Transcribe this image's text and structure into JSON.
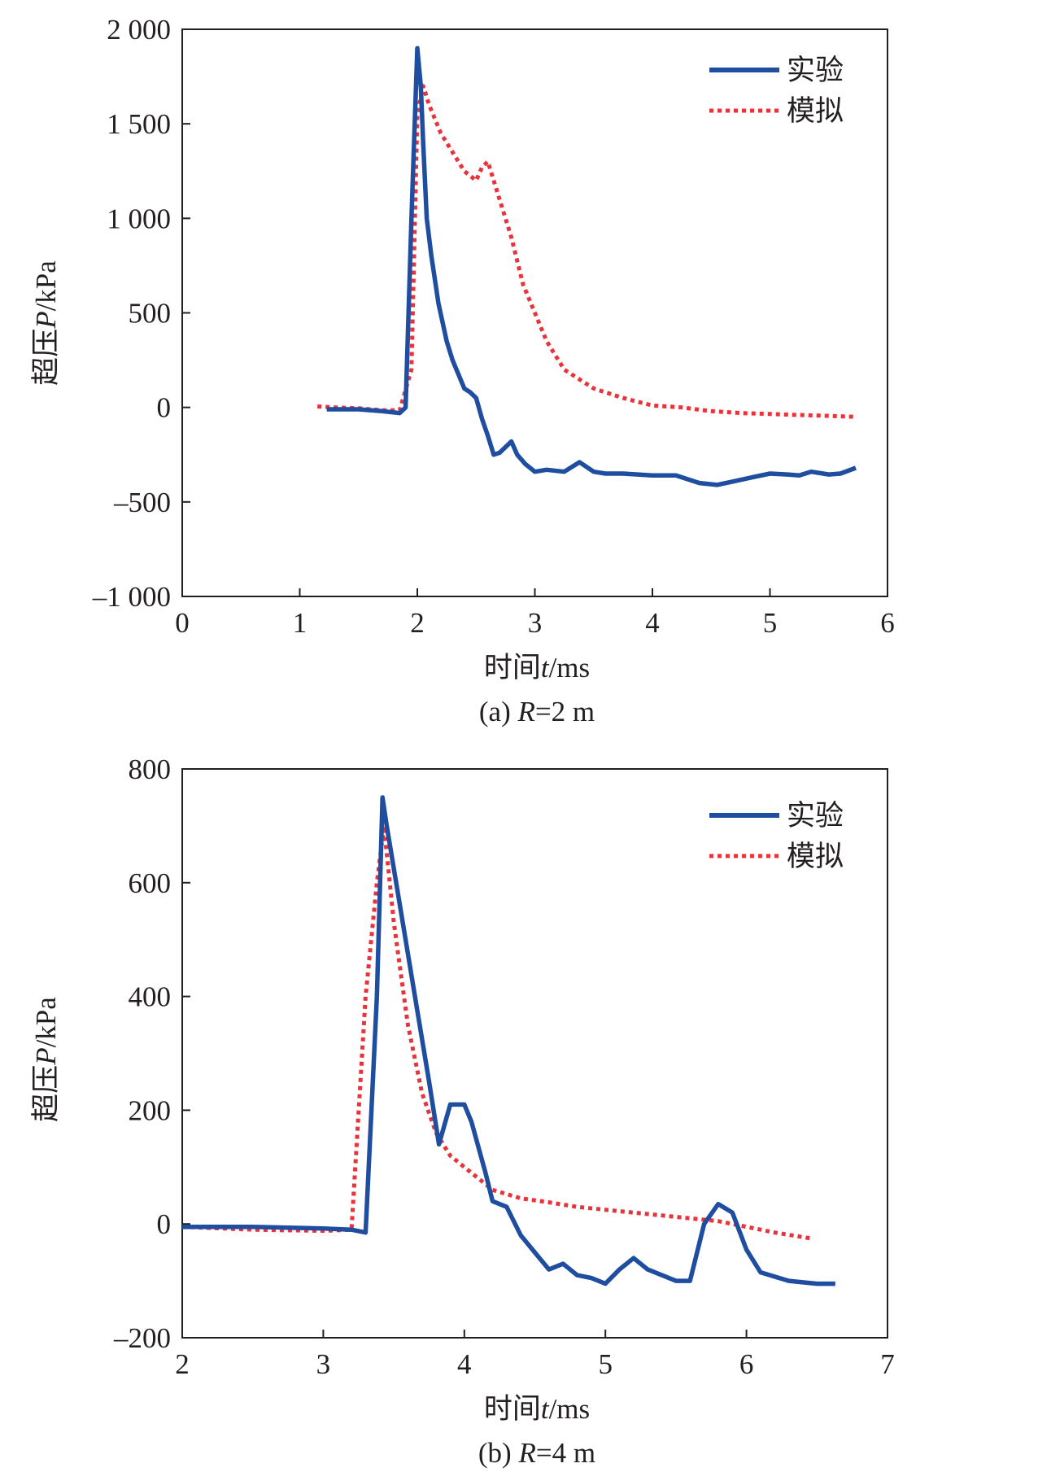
{
  "colors": {
    "experiment": "#1f4ea1",
    "simulation": "#e8333a",
    "axis": "#231f20"
  },
  "chart_data": [
    {
      "type": "line",
      "caption_prefix": "(a) ",
      "caption_var": "R",
      "caption_suffix": "=2 m",
      "xlabel_prefix": "时间",
      "xlabel_var": "t",
      "xlabel_suffix": "/ms",
      "ylabel_prefix": "超压",
      "ylabel_var": "P",
      "ylabel_suffix": "/kPa",
      "xlim": [
        0,
        6
      ],
      "ylim": [
        -1000,
        2000
      ],
      "xticks": [
        {
          "v": 0,
          "label": "0"
        },
        {
          "v": 1,
          "label": "1"
        },
        {
          "v": 2,
          "label": "2"
        },
        {
          "v": 3,
          "label": "3"
        },
        {
          "v": 4,
          "label": "4"
        },
        {
          "v": 5,
          "label": "5"
        },
        {
          "v": 6,
          "label": "6"
        }
      ],
      "yticks": [
        {
          "v": 2000,
          "label": "2 000"
        },
        {
          "v": 1500,
          "label": "1 500"
        },
        {
          "v": 1000,
          "label": "1 000"
        },
        {
          "v": 500,
          "label": "500"
        },
        {
          "v": 0,
          "label": "0"
        },
        {
          "v": -500,
          "label": "–500"
        },
        {
          "v": -1000,
          "label": "–1 000"
        }
      ],
      "legend_position": "top-right",
      "series": [
        {
          "name": "实验",
          "style": "solid",
          "x": [
            1.23,
            1.5,
            1.7,
            1.85,
            1.9,
            1.95,
            2.0,
            2.03,
            2.05,
            2.08,
            2.12,
            2.18,
            2.25,
            2.3,
            2.4,
            2.45,
            2.5,
            2.55,
            2.6,
            2.65,
            2.7,
            2.8,
            2.85,
            2.92,
            3.0,
            3.1,
            3.25,
            3.38,
            3.5,
            3.6,
            3.75,
            4.0,
            4.2,
            4.4,
            4.55,
            4.7,
            4.85,
            5.0,
            5.15,
            5.25,
            5.35,
            5.5,
            5.6,
            5.73
          ],
          "y": [
            -10,
            -10,
            -20,
            -30,
            0,
            1000,
            1900,
            1700,
            1400,
            1000,
            800,
            550,
            350,
            250,
            100,
            80,
            50,
            -60,
            -150,
            -250,
            -240,
            -180,
            -250,
            -300,
            -340,
            -330,
            -340,
            -290,
            -340,
            -350,
            -350,
            -360,
            -360,
            -400,
            -410,
            -390,
            -370,
            -350,
            -355,
            -360,
            -340,
            -355,
            -350,
            -320
          ]
        },
        {
          "name": "模拟",
          "style": "dotted",
          "x": [
            1.15,
            1.3,
            1.5,
            1.7,
            1.85,
            1.95,
            2.0,
            2.05,
            2.1,
            2.2,
            2.3,
            2.4,
            2.5,
            2.55,
            2.6,
            2.65,
            2.8,
            2.9,
            3.0,
            3.1,
            3.25,
            3.5,
            3.75,
            4.0,
            4.25,
            4.5,
            4.75,
            5.0,
            5.25,
            5.5,
            5.73
          ],
          "y": [
            5,
            0,
            -5,
            -15,
            -15,
            200,
            1550,
            1700,
            1600,
            1450,
            1350,
            1250,
            1200,
            1270,
            1300,
            1200,
            900,
            650,
            500,
            350,
            200,
            100,
            50,
            10,
            0,
            -20,
            -30,
            -35,
            -40,
            -45,
            -50
          ]
        }
      ]
    },
    {
      "type": "line",
      "caption_prefix": "(b) ",
      "caption_var": "R",
      "caption_suffix": "=4 m",
      "xlabel_prefix": "时间",
      "xlabel_var": "t",
      "xlabel_suffix": "/ms",
      "ylabel_prefix": "超压",
      "ylabel_var": "P",
      "ylabel_suffix": "/kPa",
      "xlim": [
        2,
        7
      ],
      "ylim": [
        -200,
        800
      ],
      "xticks": [
        {
          "v": 2,
          "label": "2"
        },
        {
          "v": 3,
          "label": "3"
        },
        {
          "v": 4,
          "label": "4"
        },
        {
          "v": 5,
          "label": "5"
        },
        {
          "v": 6,
          "label": "6"
        },
        {
          "v": 7,
          "label": "7"
        }
      ],
      "yticks": [
        {
          "v": 800,
          "label": "800"
        },
        {
          "v": 600,
          "label": "600"
        },
        {
          "v": 400,
          "label": "400"
        },
        {
          "v": 200,
          "label": "200"
        },
        {
          "v": 0,
          "label": "0"
        },
        {
          "v": -200,
          "label": "–200"
        }
      ],
      "legend_position": "top-right",
      "series": [
        {
          "name": "实验",
          "style": "solid",
          "x": [
            2.0,
            2.5,
            3.0,
            3.2,
            3.3,
            3.38,
            3.42,
            3.45,
            3.55,
            3.65,
            3.75,
            3.82,
            3.9,
            4.0,
            4.05,
            4.15,
            4.2,
            4.3,
            4.4,
            4.5,
            4.6,
            4.7,
            4.8,
            4.9,
            5.0,
            5.1,
            5.2,
            5.3,
            5.4,
            5.5,
            5.6,
            5.7,
            5.8,
            5.9,
            6.0,
            6.1,
            6.3,
            6.5,
            6.63
          ],
          "y": [
            -5,
            -5,
            -8,
            -10,
            -15,
            400,
            750,
            700,
            550,
            400,
            250,
            140,
            210,
            210,
            180,
            90,
            40,
            30,
            -20,
            -50,
            -80,
            -70,
            -90,
            -95,
            -105,
            -80,
            -60,
            -80,
            -90,
            -100,
            -100,
            0,
            35,
            20,
            -45,
            -85,
            -100,
            -105,
            -105
          ]
        },
        {
          "name": "模拟",
          "style": "dotted",
          "x": [
            2.0,
            2.5,
            3.0,
            3.2,
            3.3,
            3.38,
            3.43,
            3.5,
            3.6,
            3.7,
            3.8,
            3.9,
            4.0,
            4.2,
            4.4,
            4.6,
            4.8,
            5.0,
            5.2,
            5.4,
            5.6,
            5.8,
            6.0,
            6.2,
            6.45
          ],
          "y": [
            -5,
            -10,
            -12,
            -10,
            400,
            600,
            700,
            530,
            350,
            230,
            160,
            120,
            100,
            60,
            45,
            38,
            30,
            25,
            20,
            15,
            10,
            5,
            -5,
            -15,
            -25
          ]
        }
      ]
    }
  ]
}
